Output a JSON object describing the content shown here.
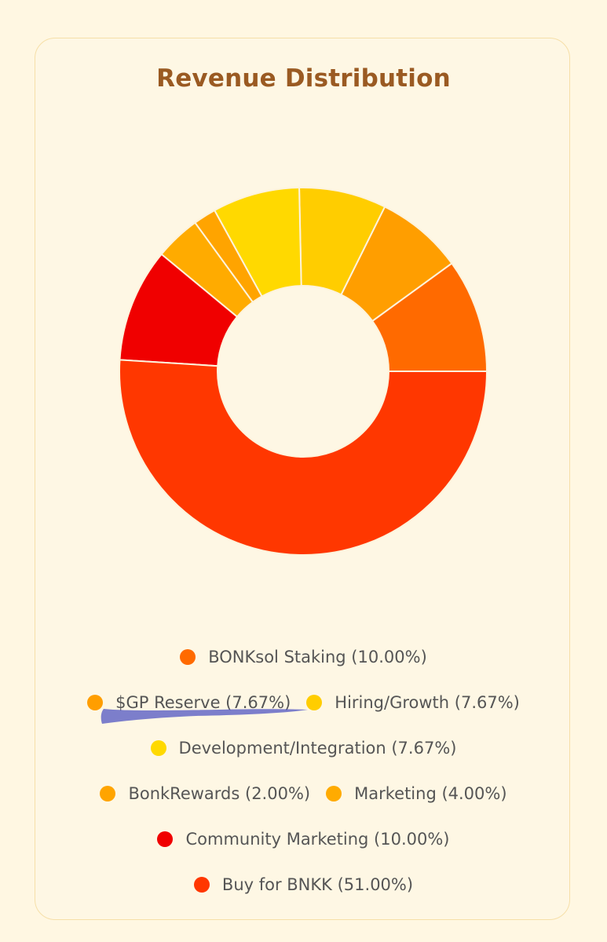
{
  "card": {
    "title": "Revenue Distribution"
  },
  "chart_data": {
    "type": "donut",
    "title": "Revenue Distribution",
    "slices": [
      {
        "label": "BONKsol Staking",
        "value": 10.0,
        "display": "BONKsol Staking (10.00%)",
        "color": "#ff6a00"
      },
      {
        "label": "$GP Reserve",
        "value": 7.67,
        "display": "$GP Reserve (7.67%)",
        "color": "#ff9e00"
      },
      {
        "label": "Hiring/Growth",
        "value": 7.67,
        "display": "Hiring/Growth (7.67%)",
        "color": "#ffcd00"
      },
      {
        "label": "Development/Integration",
        "value": 7.67,
        "display": "Development/Integration (7.67%)",
        "color": "#ffd900"
      },
      {
        "label": "BonkRewards",
        "value": 2.0,
        "display": "BonkRewards (2.00%)",
        "color": "#ffa400"
      },
      {
        "label": "Marketing",
        "value": 4.0,
        "display": "Marketing (4.00%)",
        "color": "#ffab00"
      },
      {
        "label": "Community Marketing",
        "value": 10.0,
        "display": "Community Marketing (10.00%)",
        "color": "#f00000"
      },
      {
        "label": "Buy for BNKK",
        "value": 51.0,
        "display": "Buy for BNKK (51.00%)",
        "color": "#ff3700"
      }
    ],
    "legend_placement": "bottom"
  },
  "legend": {
    "rows": [
      [
        0
      ],
      [
        1,
        2
      ],
      [
        3
      ],
      [
        4,
        5
      ],
      [
        6
      ],
      [
        7
      ]
    ]
  },
  "annotation": {
    "color": "#4a4fc0",
    "description": "blue marker underline under $GP Reserve"
  }
}
